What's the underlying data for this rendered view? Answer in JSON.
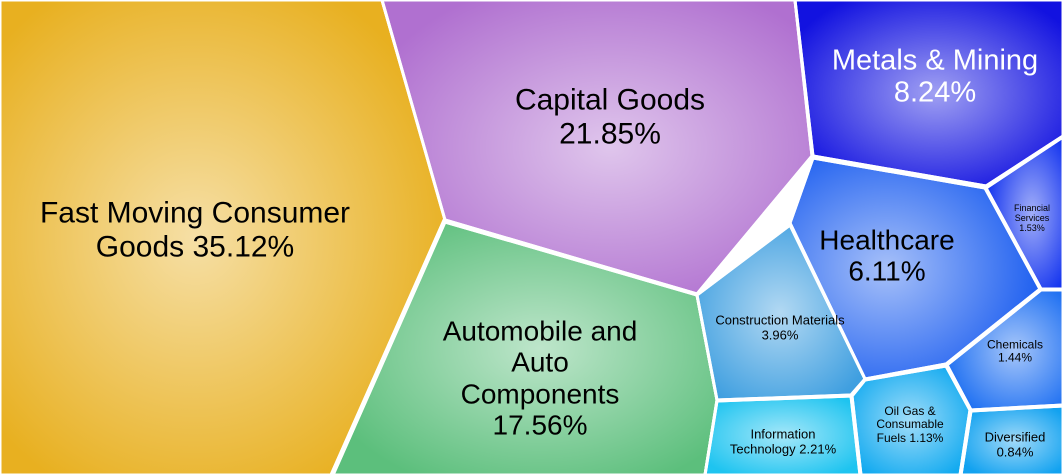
{
  "chart_data": {
    "type": "voronoi-treemap",
    "categories": [
      "Fast Moving Consumer Goods",
      "Capital Goods",
      "Automobile and Auto Components",
      "Metals & Mining",
      "Healthcare",
      "Construction Materials",
      "Information Technology",
      "Financial Services",
      "Chemicals",
      "Oil Gas & Consumable Fuels",
      "Diversified"
    ],
    "values": [
      35.12,
      21.85,
      17.56,
      8.24,
      6.11,
      3.96,
      2.21,
      1.53,
      1.44,
      1.13,
      0.84
    ],
    "value_labels": [
      "35.12%",
      "21.85%",
      "17.56%",
      "8.24%",
      "6.11%",
      "3.96%",
      "2.21%",
      "1.53%",
      "1.44%",
      "1.13%",
      "0.84%"
    ],
    "colors": [
      "#e8b020",
      "#b070d0",
      "#5cbf7c",
      "#1212e0",
      "#2262f0",
      "#3f9fe0",
      "#1ec4f0",
      "#1535ef",
      "#2272f2",
      "#12aaf0",
      "#12a2f0"
    ]
  }
}
